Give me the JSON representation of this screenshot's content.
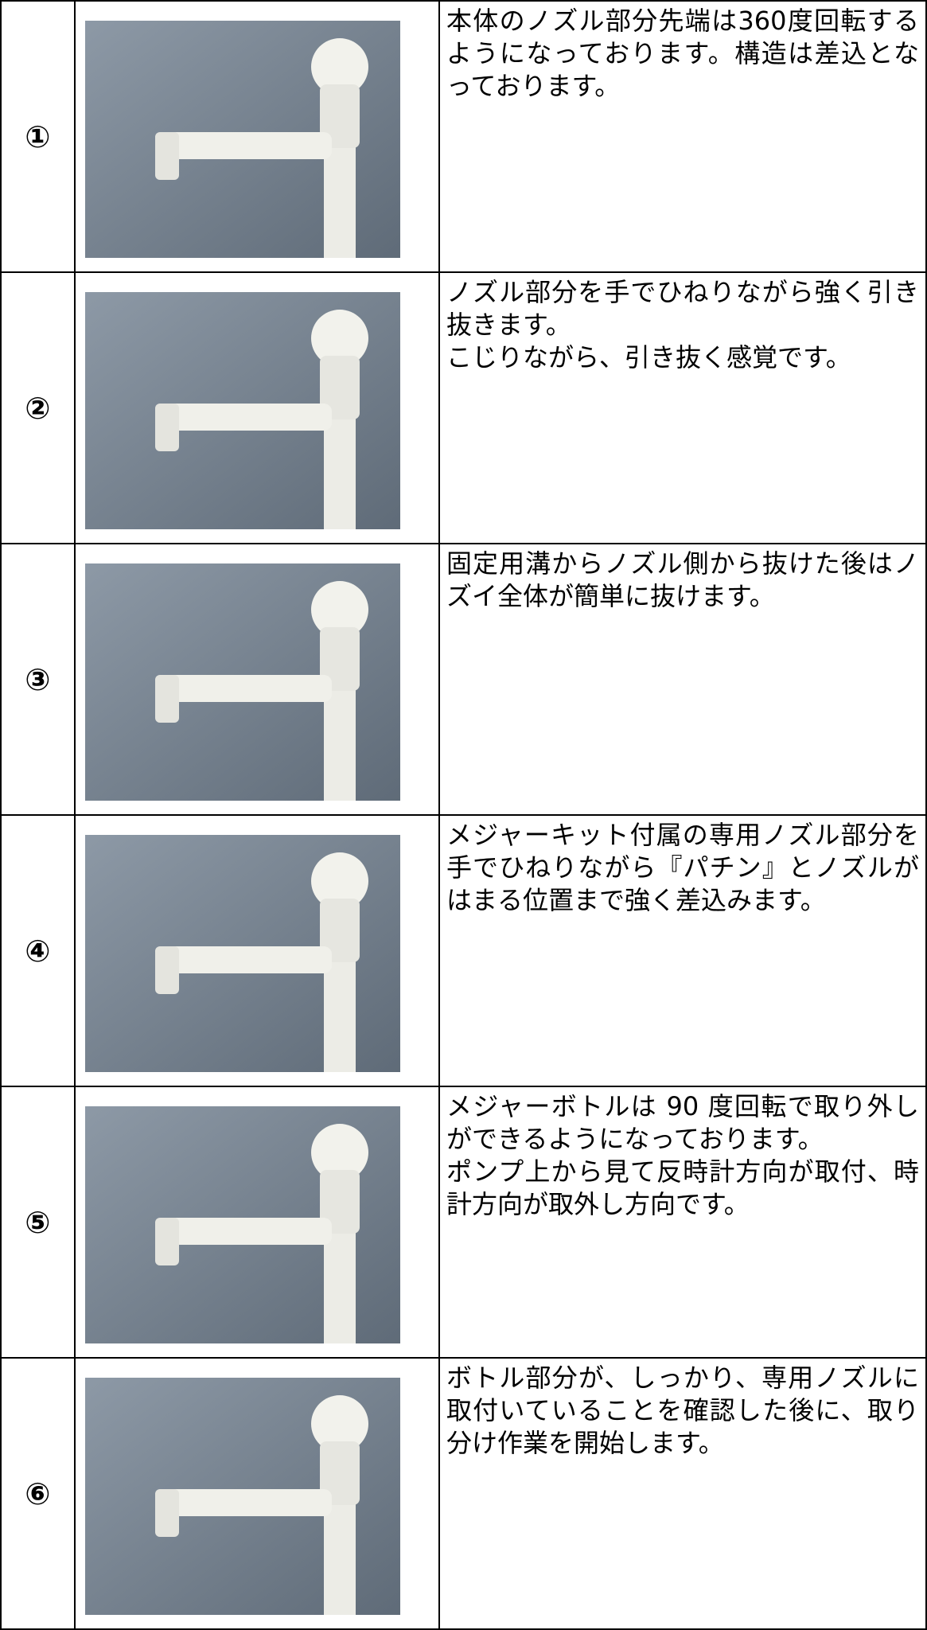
{
  "table": {
    "rows": [
      {
        "number": "①",
        "text": [
          "本体のノズル部分先端は360度回転するようになっております。構造は差込となっております。"
        ]
      },
      {
        "number": "②",
        "text": [
          "ノズル部分を手でひねりながら強く引き抜きます。",
          "こじりながら、引き抜く感覚です。"
        ]
      },
      {
        "number": "③",
        "text": [
          "固定用溝からノズル側から抜けた後はノズイ全体が簡単に抜けます。"
        ]
      },
      {
        "number": "④",
        "text": [
          "メジャーキット付属の専用ノズル部分を手でひねりながら『パチン』とノズルがはまる位置まで強く差込みます。"
        ]
      },
      {
        "number": "⑤",
        "text": [
          "メジャーボトルは 90 度回転で取り外しができるようになっております。",
          "ポンプ上から見て反時計方向が取付、時計方向が取外し方向です。"
        ]
      },
      {
        "number": "⑥",
        "text": [
          "ボトル部分が、しっかり、専用ノズルに取付いていることを確認した後に、取り分け作業を開始します。"
        ]
      }
    ]
  }
}
